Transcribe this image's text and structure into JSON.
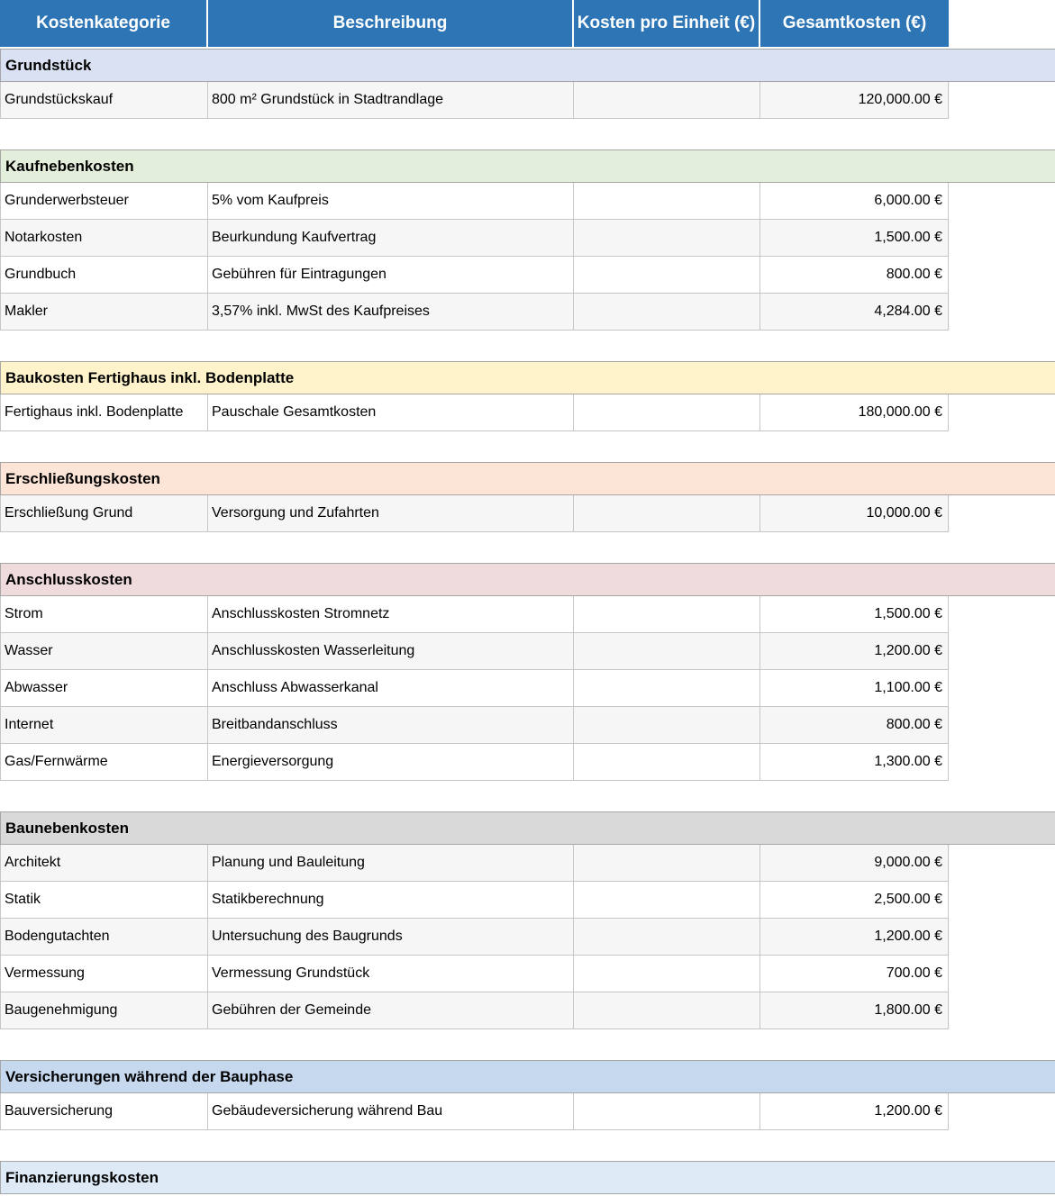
{
  "table": {
    "header_bg": "#2E75B6",
    "row_shade_color": "#F6F6F6",
    "columns": [
      "Kostenkategorie",
      "Beschreibung",
      "Kosten pro Einheit (€)",
      "Gesamtkosten (€)"
    ],
    "sections": [
      {
        "title": "Grundstück",
        "color": "#DAE1F2",
        "rows": [
          {
            "category": "Grundstückskauf",
            "description": "800 m² Grundstück in Stadtrandlage",
            "unit_cost": "",
            "total": "120,000.00 €",
            "shaded": true
          }
        ]
      },
      {
        "title": "Kaufnebenkosten",
        "color": "#E3EFDB",
        "rows": [
          {
            "category": "Grunderwerbsteuer",
            "description": "5% vom Kaufpreis",
            "unit_cost": "",
            "total": "6,000.00 €",
            "shaded": false
          },
          {
            "category": "Notarkosten",
            "description": "Beurkundung Kaufvertrag",
            "unit_cost": "",
            "total": "1,500.00 €",
            "shaded": true
          },
          {
            "category": "Grundbuch",
            "description": "Gebühren für Eintragungen",
            "unit_cost": "",
            "total": "800.00 €",
            "shaded": false
          },
          {
            "category": "Makler",
            "description": "3,57% inkl. MwSt des Kaufpreises",
            "unit_cost": "",
            "total": "4,284.00 €",
            "shaded": true
          }
        ]
      },
      {
        "title": "Baukosten Fertighaus inkl. Bodenplatte",
        "color": "#FFF3CC",
        "rows": [
          {
            "category": "Fertighaus inkl. Bodenplatte",
            "description": "Pauschale Gesamtkosten",
            "unit_cost": "",
            "total": "180,000.00 €",
            "shaded": false
          }
        ]
      },
      {
        "title": "Erschließungskosten",
        "color": "#FCE5D6",
        "rows": [
          {
            "category": "Erschließung Grund",
            "description": "Versorgung und Zufahrten",
            "unit_cost": "",
            "total": "10,000.00 €",
            "shaded": true
          }
        ]
      },
      {
        "title": "Anschlusskosten",
        "color": "#EFDBDB",
        "rows": [
          {
            "category": "Strom",
            "description": "Anschlusskosten Stromnetz",
            "unit_cost": "",
            "total": "1,500.00 €",
            "shaded": false
          },
          {
            "category": "Wasser",
            "description": "Anschlusskosten Wasserleitung",
            "unit_cost": "",
            "total": "1,200.00 €",
            "shaded": true
          },
          {
            "category": "Abwasser",
            "description": "Anschluss Abwasserkanal",
            "unit_cost": "",
            "total": "1,100.00 €",
            "shaded": false
          },
          {
            "category": "Internet",
            "description": "Breitbandanschluss",
            "unit_cost": "",
            "total": "800.00 €",
            "shaded": true
          },
          {
            "category": "Gas/Fernwärme",
            "description": "Energieversorgung",
            "unit_cost": "",
            "total": "1,300.00 €",
            "shaded": false
          }
        ]
      },
      {
        "title": "Baunebenkosten",
        "color": "#D9D9D9",
        "rows": [
          {
            "category": "Architekt",
            "description": "Planung und Bauleitung",
            "unit_cost": "",
            "total": "9,000.00 €",
            "shaded": true
          },
          {
            "category": "Statik",
            "description": "Statikberechnung",
            "unit_cost": "",
            "total": "2,500.00 €",
            "shaded": false
          },
          {
            "category": "Bodengutachten",
            "description": "Untersuchung des Baugrunds",
            "unit_cost": "",
            "total": "1,200.00 €",
            "shaded": true
          },
          {
            "category": "Vermessung",
            "description": "Vermessung Grundstück",
            "unit_cost": "",
            "total": "700.00 €",
            "shaded": false
          },
          {
            "category": "Baugenehmigung",
            "description": "Gebühren der Gemeinde",
            "unit_cost": "",
            "total": "1,800.00 €",
            "shaded": true
          }
        ]
      },
      {
        "title": "Versicherungen während der Bauphase",
        "color": "#C5D8EE",
        "rows": [
          {
            "category": "Bauversicherung",
            "description": "Gebäudeversicherung während Bau",
            "unit_cost": "",
            "total": "1,200.00 €",
            "shaded": false
          }
        ]
      },
      {
        "title": "Finanzierungskosten",
        "color": "#DDEAF6",
        "rows": []
      }
    ]
  }
}
